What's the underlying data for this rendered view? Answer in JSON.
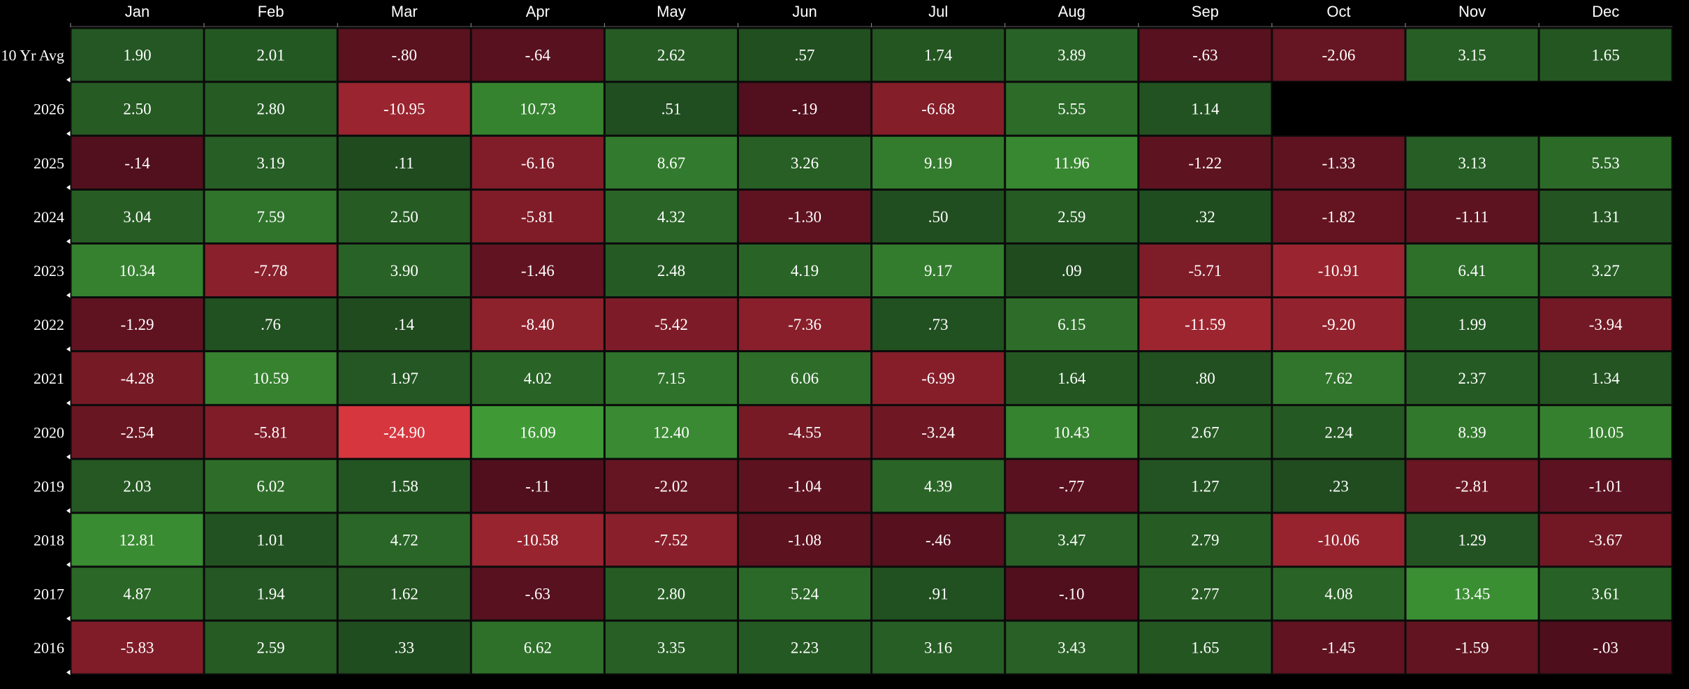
{
  "chart_data": {
    "type": "heatmap",
    "columns": [
      "Jan",
      "Feb",
      "Mar",
      "Apr",
      "May",
      "Jun",
      "Jul",
      "Aug",
      "Sep",
      "Oct",
      "Nov",
      "Dec"
    ],
    "rows": [
      {
        "label": "10 Yr Avg",
        "values": [
          "1.90",
          "2.01",
          "-.80",
          "-.64",
          "2.62",
          ".57",
          "1.74",
          "3.89",
          "-.63",
          "-2.06",
          "3.15",
          "1.65"
        ]
      },
      {
        "label": "2026",
        "values": [
          "2.50",
          "2.80",
          "-10.95",
          "10.73",
          ".51",
          "-.19",
          "-6.68",
          "5.55",
          "1.14",
          null,
          null,
          null
        ]
      },
      {
        "label": "2025",
        "values": [
          "-.14",
          "3.19",
          ".11",
          "-6.16",
          "8.67",
          "3.26",
          "9.19",
          "11.96",
          "-1.22",
          "-1.33",
          "3.13",
          "5.53"
        ]
      },
      {
        "label": "2024",
        "values": [
          "3.04",
          "7.59",
          "2.50",
          "-5.81",
          "4.32",
          "-1.30",
          ".50",
          "2.59",
          ".32",
          "-1.82",
          "-1.11",
          "1.31"
        ]
      },
      {
        "label": "2023",
        "values": [
          "10.34",
          "-7.78",
          "3.90",
          "-1.46",
          "2.48",
          "4.19",
          "9.17",
          ".09",
          "-5.71",
          "-10.91",
          "6.41",
          "3.27"
        ]
      },
      {
        "label": "2022",
        "values": [
          "-1.29",
          ".76",
          ".14",
          "-8.40",
          "-5.42",
          "-7.36",
          ".73",
          "6.15",
          "-11.59",
          "-9.20",
          "1.99",
          "-3.94"
        ]
      },
      {
        "label": "2021",
        "values": [
          "-4.28",
          "10.59",
          "1.97",
          "4.02",
          "7.15",
          "6.06",
          "-6.99",
          "1.64",
          ".80",
          "7.62",
          "2.37",
          "1.34"
        ]
      },
      {
        "label": "2020",
        "values": [
          "-2.54",
          "-5.81",
          "-24.90",
          "16.09",
          "12.40",
          "-4.55",
          "-3.24",
          "10.43",
          "2.67",
          "2.24",
          "8.39",
          "10.05"
        ]
      },
      {
        "label": "2019",
        "values": [
          "2.03",
          "6.02",
          "1.58",
          "-.11",
          "-2.02",
          "-1.04",
          "4.39",
          "-.77",
          "1.27",
          ".23",
          "-2.81",
          "-1.01"
        ]
      },
      {
        "label": "2018",
        "values": [
          "12.81",
          "1.01",
          "4.72",
          "-10.58",
          "-7.52",
          "-1.08",
          "-.46",
          "3.47",
          "2.79",
          "-10.06",
          "1.29",
          "-3.67"
        ]
      },
      {
        "label": "2017",
        "values": [
          "4.87",
          "1.94",
          "1.62",
          "-.63",
          "2.80",
          "5.24",
          ".91",
          "-.10",
          "2.77",
          "4.08",
          "13.45",
          "3.61"
        ]
      },
      {
        "label": "2016",
        "values": [
          "-5.83",
          "2.59",
          ".33",
          "6.62",
          "3.35",
          "2.23",
          "3.16",
          "3.43",
          "1.65",
          "-1.45",
          "-1.59",
          "-.03"
        ]
      }
    ],
    "colors": {
      "background": "#000000",
      "positive_dark": "#1f4a1f",
      "positive_bright": "#3f9a36",
      "negative_dark": "#4e0e1c",
      "negative_bright": "#d6363e",
      "text": "#ffffff",
      "cell_border": "#0b0b0b"
    }
  }
}
